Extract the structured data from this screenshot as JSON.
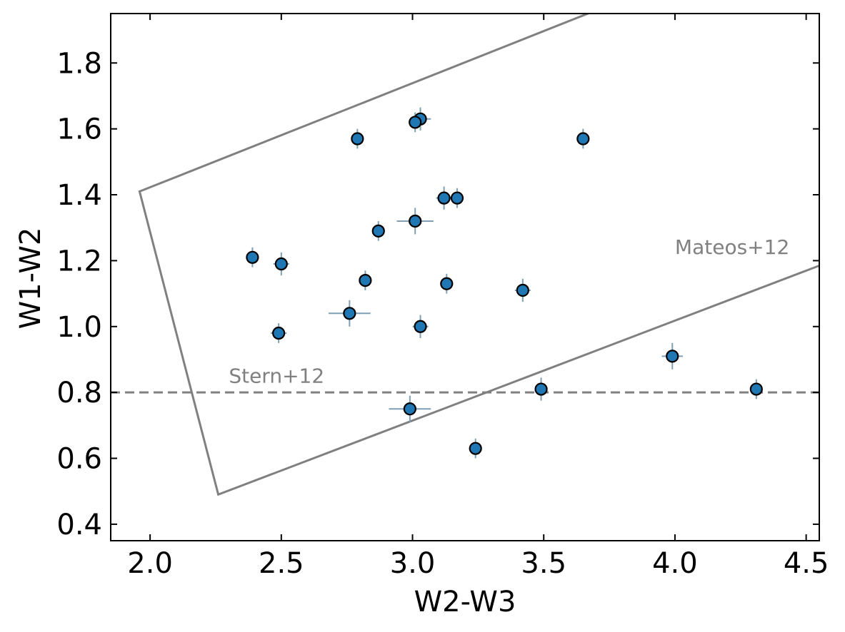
{
  "chart_data": {
    "type": "scatter",
    "title": "",
    "xlabel": "W2-W3",
    "ylabel": "W1-W2",
    "xlim": [
      1.85,
      4.55
    ],
    "ylim": [
      0.35,
      1.95
    ],
    "xticks": [
      2.0,
      2.5,
      3.0,
      3.5,
      4.0,
      4.5
    ],
    "xtick_labels": [
      "2.0",
      "2.5",
      "3.0",
      "3.5",
      "4.0",
      "4.5"
    ],
    "yticks": [
      0.4,
      0.6,
      0.8,
      1.0,
      1.2,
      1.4,
      1.6,
      1.8
    ],
    "ytick_labels": [
      "0.4",
      "0.6",
      "0.8",
      "1.0",
      "1.2",
      "1.4",
      "1.6",
      "1.8"
    ],
    "grid": false,
    "colors": {
      "marker_fill": "#1f77b4",
      "marker_edge": "#000000",
      "errorbar": "#7f9fb4",
      "reference_line": "#808080"
    },
    "points": [
      {
        "x": 2.79,
        "y": 1.57,
        "xerr": 0.02,
        "yerr": 0.03
      },
      {
        "x": 3.03,
        "y": 1.63,
        "xerr": 0.04,
        "yerr": 0.035
      },
      {
        "x": 3.01,
        "y": 1.62,
        "xerr": 0.02,
        "yerr": 0.03
      },
      {
        "x": 3.65,
        "y": 1.57,
        "xerr": 0.02,
        "yerr": 0.03
      },
      {
        "x": 3.12,
        "y": 1.39,
        "xerr": 0.03,
        "yerr": 0.035
      },
      {
        "x": 3.17,
        "y": 1.39,
        "xerr": 0.02,
        "yerr": 0.03
      },
      {
        "x": 3.01,
        "y": 1.32,
        "xerr": 0.07,
        "yerr": 0.04
      },
      {
        "x": 2.87,
        "y": 1.29,
        "xerr": 0.02,
        "yerr": 0.03
      },
      {
        "x": 2.39,
        "y": 1.21,
        "xerr": 0.02,
        "yerr": 0.03
      },
      {
        "x": 2.5,
        "y": 1.19,
        "xerr": 0.03,
        "yerr": 0.035
      },
      {
        "x": 2.82,
        "y": 1.14,
        "xerr": 0.02,
        "yerr": 0.03
      },
      {
        "x": 3.13,
        "y": 1.13,
        "xerr": 0.02,
        "yerr": 0.03
      },
      {
        "x": 3.42,
        "y": 1.11,
        "xerr": 0.03,
        "yerr": 0.035
      },
      {
        "x": 2.76,
        "y": 1.04,
        "xerr": 0.08,
        "yerr": 0.04
      },
      {
        "x": 3.03,
        "y": 1.0,
        "xerr": 0.03,
        "yerr": 0.035
      },
      {
        "x": 2.49,
        "y": 0.98,
        "xerr": 0.03,
        "yerr": 0.03
      },
      {
        "x": 3.99,
        "y": 0.91,
        "xerr": 0.04,
        "yerr": 0.04
      },
      {
        "x": 3.49,
        "y": 0.81,
        "xerr": 0.02,
        "yerr": 0.035
      },
      {
        "x": 4.31,
        "y": 0.81,
        "xerr": 0.02,
        "yerr": 0.03
      },
      {
        "x": 2.99,
        "y": 0.75,
        "xerr": 0.08,
        "yerr": 0.04
      },
      {
        "x": 3.24,
        "y": 0.63,
        "xerr": 0.02,
        "yerr": 0.03
      }
    ],
    "reference_lines": [
      {
        "style": "dashed",
        "y": 0.8
      },
      {
        "style": "solid",
        "path": [
          [
            3.7,
            1.96
          ],
          [
            1.96,
            1.41
          ],
          [
            2.26,
            0.49
          ],
          [
            4.6,
            1.2
          ]
        ]
      }
    ],
    "annotations": [
      {
        "text": "Mateos+12",
        "x": 4.0,
        "y": 1.22
      },
      {
        "text": "Stern+12",
        "x": 2.3,
        "y": 0.83
      }
    ]
  }
}
